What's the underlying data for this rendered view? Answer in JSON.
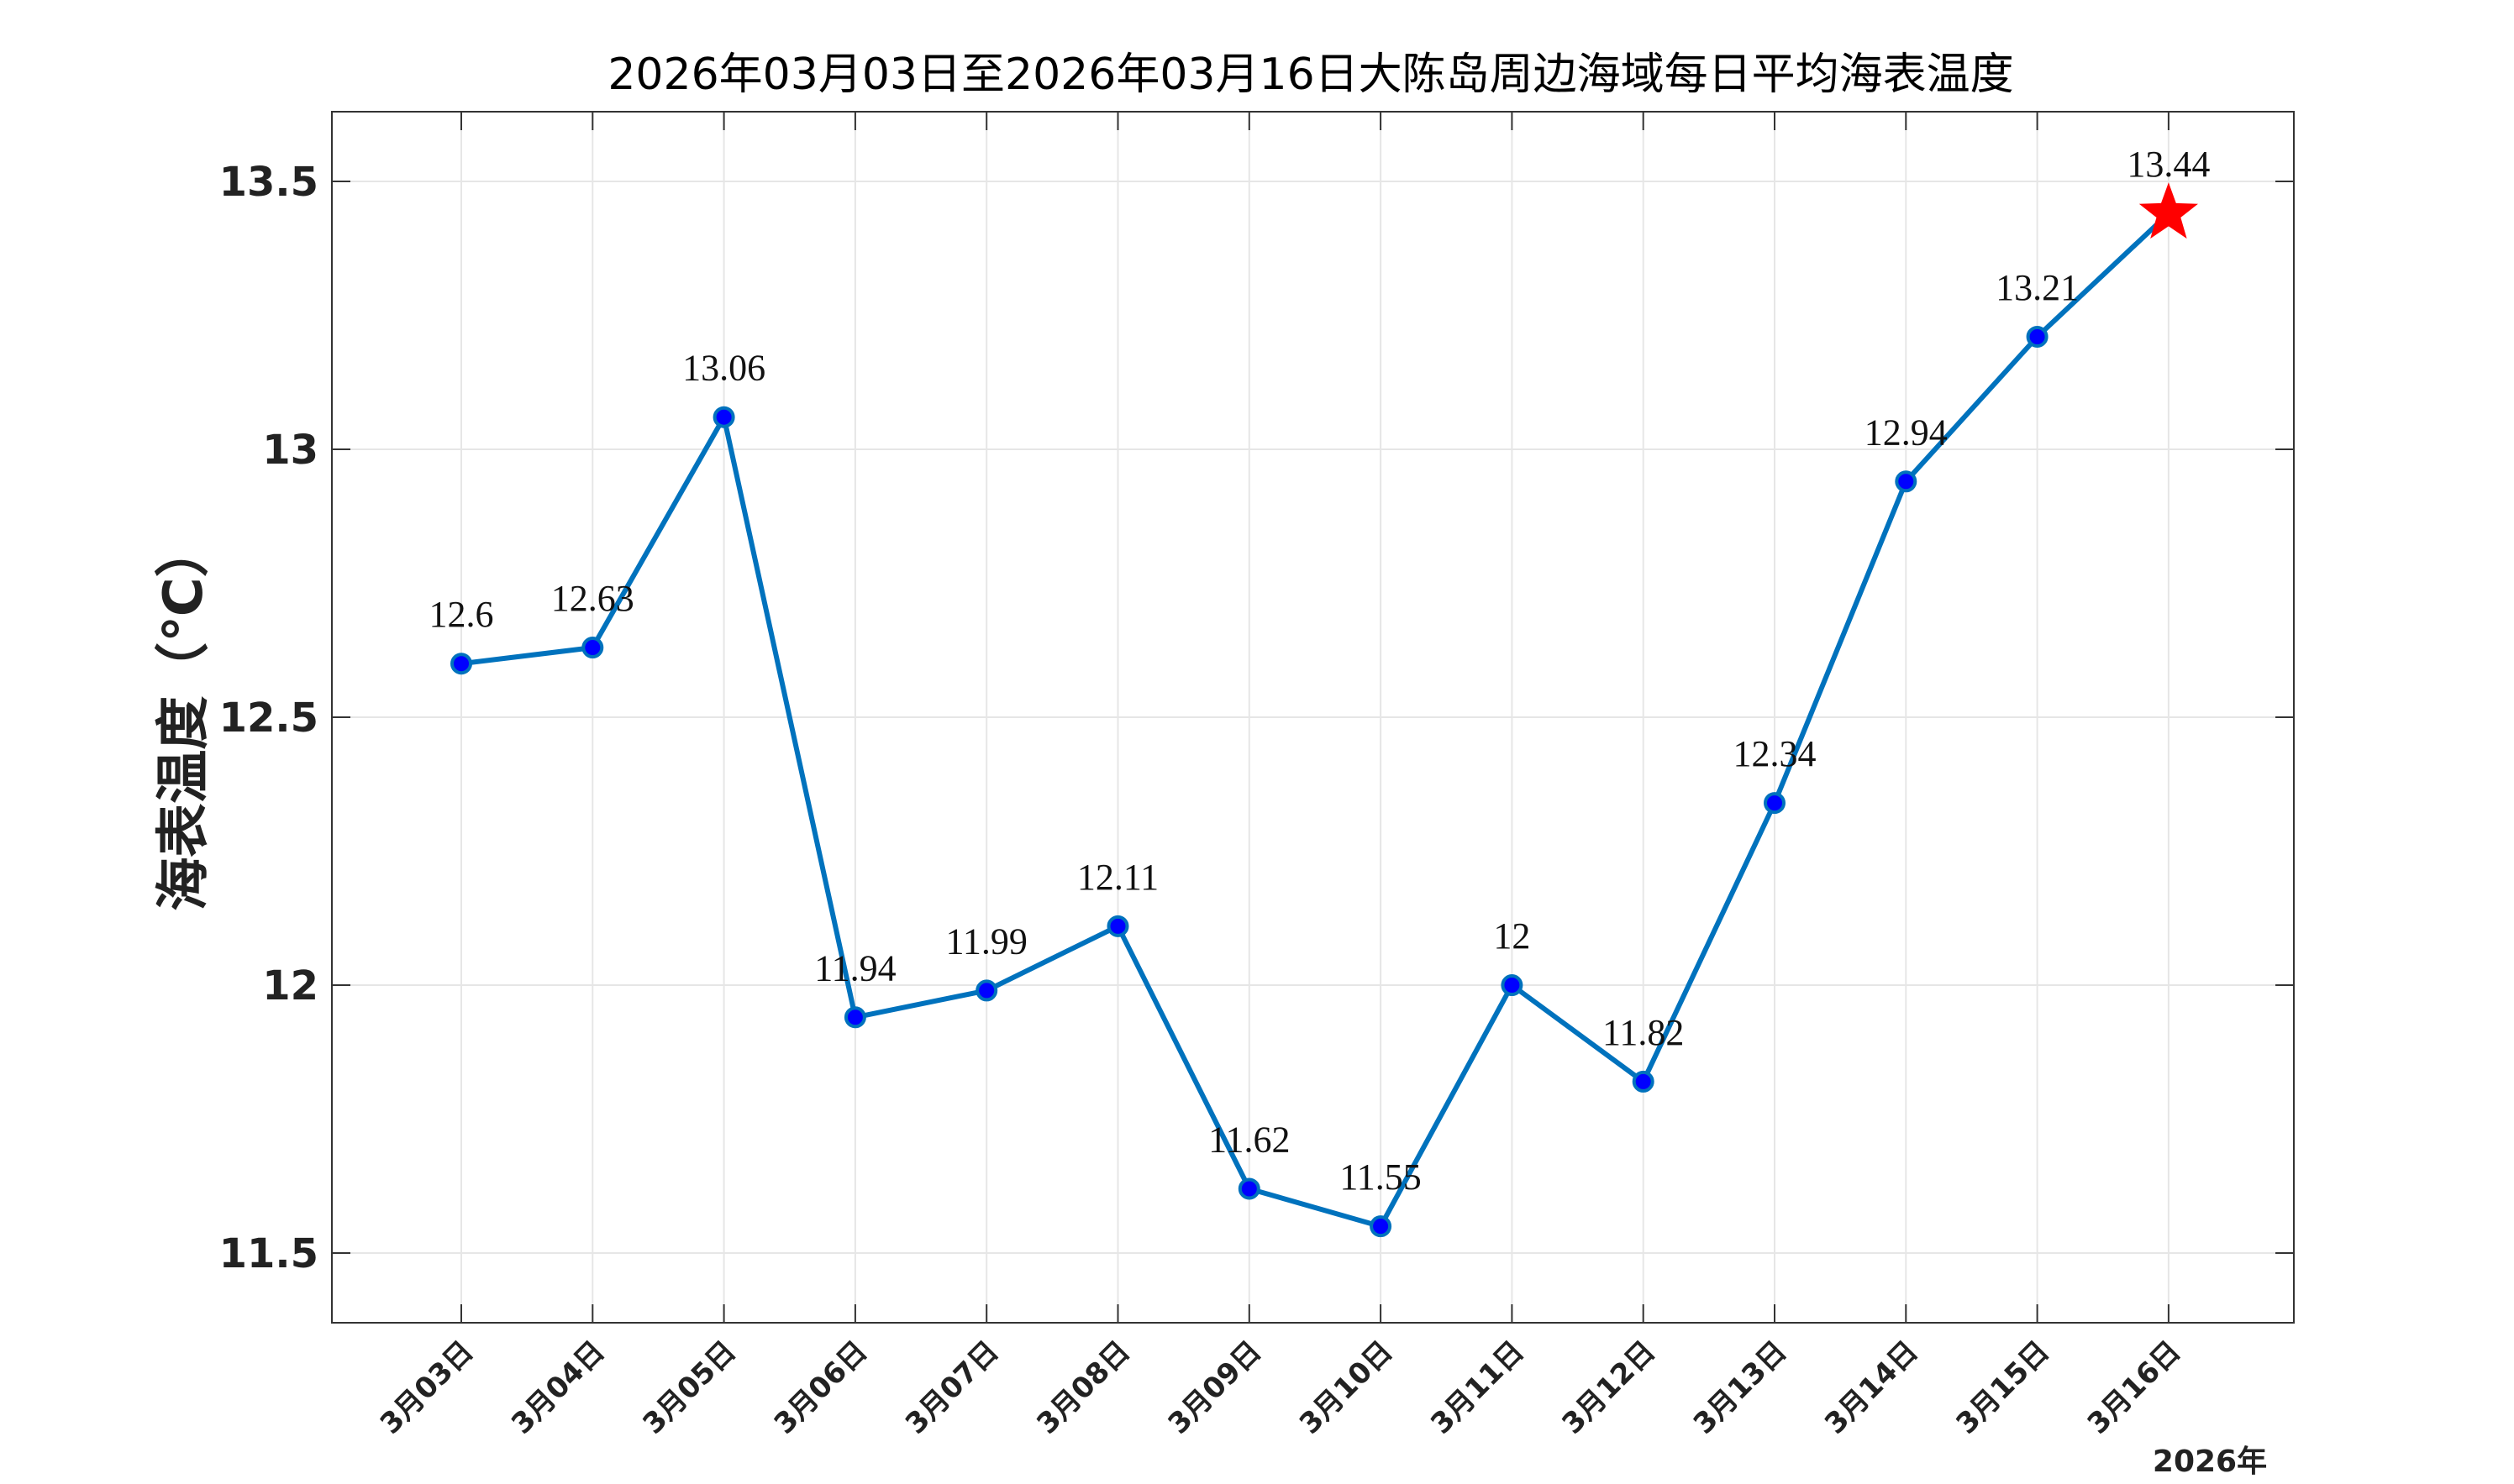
{
  "chart_data": {
    "type": "line",
    "title": "2026年03月03日至2026年03月16日大陈岛周边海域每日平均海表温度",
    "ylabel": "海表温度（℃）",
    "xlabel_suffix": "2026年",
    "categories": [
      "3月03日",
      "3月04日",
      "3月05日",
      "3月06日",
      "3月07日",
      "3月08日",
      "3月09日",
      "3月10日",
      "3月11日",
      "3月12日",
      "3月13日",
      "3月14日",
      "3月15日",
      "3月16日"
    ],
    "data_labels": [
      "12.6",
      "12.63",
      "13.06",
      "11.94",
      "11.99",
      "12.11",
      "11.62",
      "11.55",
      "12",
      "11.82",
      "12.34",
      "12.94",
      "13.21",
      "13.44"
    ],
    "series": [
      {
        "values": [
          12.6,
          12.63,
          13.06,
          11.94,
          11.99,
          12.11,
          11.62,
          11.55,
          12.0,
          11.82,
          12.34,
          12.94,
          13.21,
          13.44
        ]
      }
    ],
    "yticks": [
      "11.5",
      "12",
      "12.5",
      "13",
      "13.5"
    ],
    "ytick_values": [
      11.5,
      12.0,
      12.5,
      13.0,
      13.5
    ],
    "ylim": [
      11.37,
      13.63
    ],
    "grid": true,
    "line_color": "#0072BD",
    "marker_color": "#0000FF",
    "last_marker": "star",
    "last_marker_color": "#FF0000"
  }
}
